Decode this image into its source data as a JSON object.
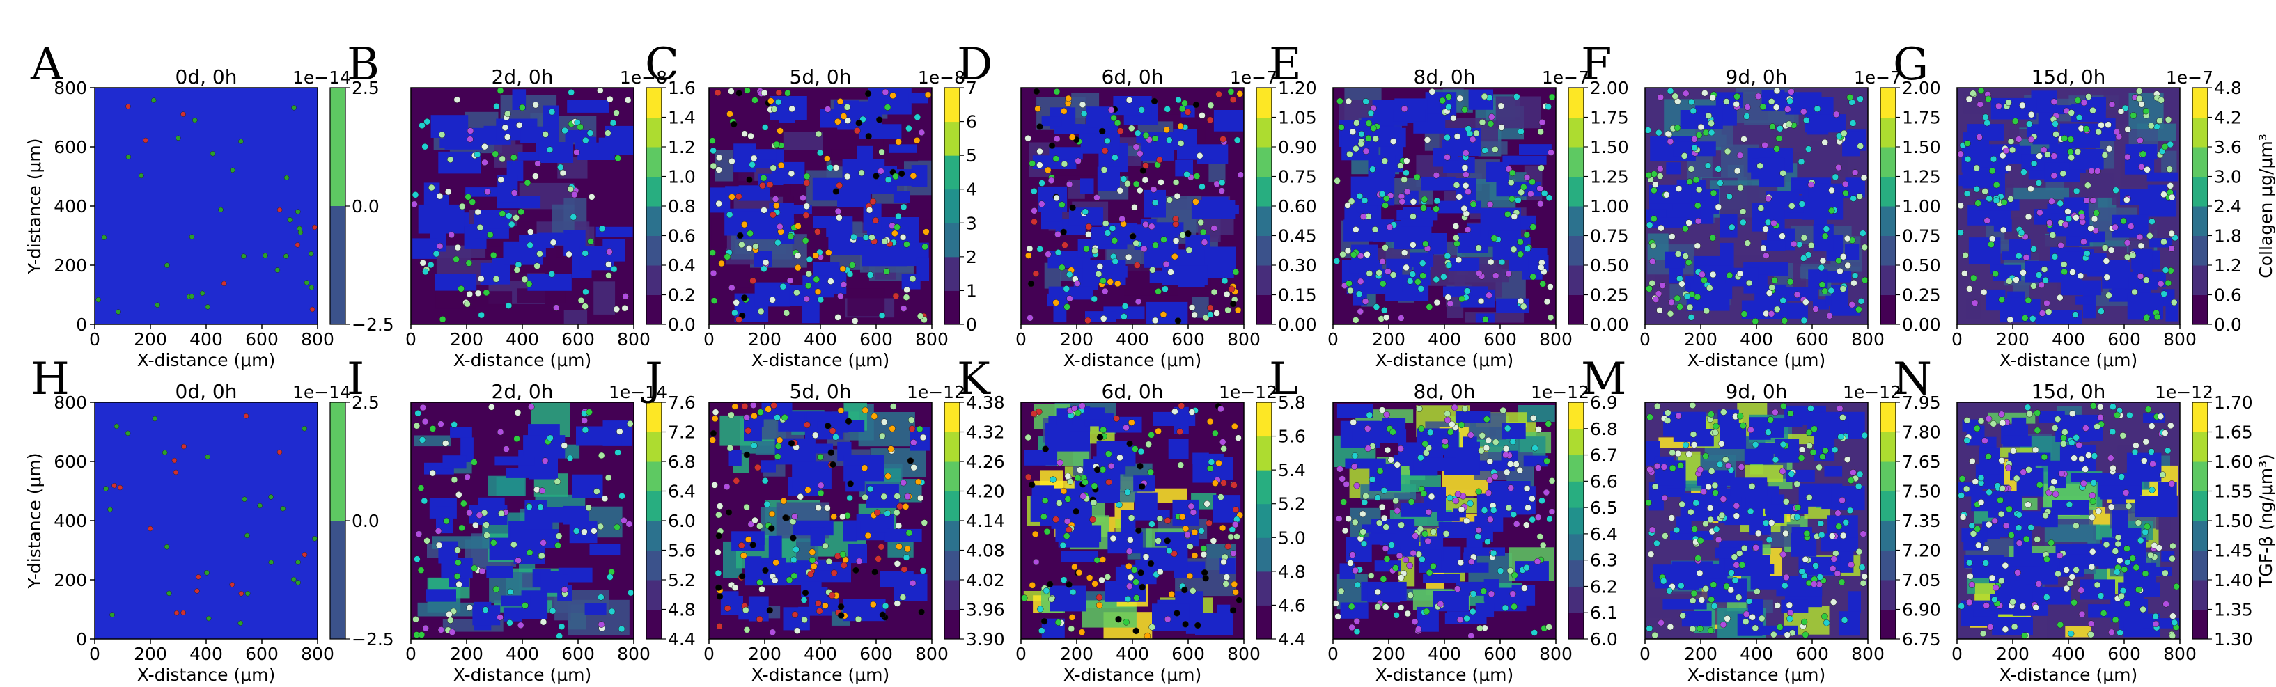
{
  "chart_data": {
    "type": "heatmap",
    "description": "Agent-based simulation panels of cell positions overlaid on a substance concentration field",
    "x_axis": {
      "label": "X-distance (μm)",
      "ticks": [
        0,
        200,
        400,
        600,
        800
      ],
      "range": [
        0,
        800
      ]
    },
    "y_axis": {
      "label": "Y-distance (μm)",
      "ticks": [
        0,
        200,
        400,
        600,
        800
      ],
      "range": [
        0,
        800
      ]
    },
    "rows": [
      {
        "colorbar_label": "Collagen μg/μm³",
        "panels": [
          {
            "letter": "A",
            "title": "0d, 0h",
            "exponent": "1e−14",
            "cbar_ticks": [
              "−2.5",
              "0.0",
              "2.5"
            ],
            "cbar_range": [
              -2.5,
              2.5
            ],
            "cbar_type": "two"
          },
          {
            "letter": "B",
            "title": "2d, 0h",
            "exponent": "1e−8",
            "cbar_ticks": [
              "0.0",
              "0.2",
              "0.4",
              "0.6",
              "0.8",
              "1.0",
              "1.2",
              "1.4",
              "1.6"
            ],
            "cbar_range": [
              0.0,
              1.6
            ]
          },
          {
            "letter": "C",
            "title": "5d, 0h",
            "exponent": "1e−8",
            "cbar_ticks": [
              "0",
              "1",
              "2",
              "3",
              "4",
              "5",
              "6",
              "7"
            ],
            "cbar_range": [
              0,
              7
            ]
          },
          {
            "letter": "D",
            "title": "6d, 0h",
            "exponent": "1e−7",
            "cbar_ticks": [
              "0.00",
              "0.15",
              "0.30",
              "0.45",
              "0.60",
              "0.75",
              "0.90",
              "1.05",
              "1.20"
            ],
            "cbar_range": [
              0.0,
              1.2
            ]
          },
          {
            "letter": "E",
            "title": "8d, 0h",
            "exponent": "1e−7",
            "cbar_ticks": [
              "0.00",
              "0.25",
              "0.50",
              "0.75",
              "1.00",
              "1.25",
              "1.50",
              "1.75",
              "2.00"
            ],
            "cbar_range": [
              0.0,
              2.0
            ]
          },
          {
            "letter": "F",
            "title": "9d, 0h",
            "exponent": "1e−7",
            "cbar_ticks": [
              "0.00",
              "0.25",
              "0.50",
              "0.75",
              "1.00",
              "1.25",
              "1.50",
              "1.75",
              "2.00"
            ],
            "cbar_range": [
              0.0,
              2.0
            ]
          },
          {
            "letter": "G",
            "title": "15d, 0h",
            "exponent": "1e−7",
            "cbar_ticks": [
              "0.0",
              "0.6",
              "1.2",
              "1.8",
              "2.4",
              "3.0",
              "3.6",
              "4.2",
              "4.8"
            ],
            "cbar_range": [
              0.0,
              4.8
            ]
          }
        ]
      },
      {
        "colorbar_label": "TGF-β (ng/μm³)",
        "panels": [
          {
            "letter": "H",
            "title": "0d, 0h",
            "exponent": "1e−14",
            "cbar_ticks": [
              "−2.5",
              "0.0",
              "2.5"
            ],
            "cbar_range": [
              -2.5,
              2.5
            ],
            "cbar_type": "two"
          },
          {
            "letter": "I",
            "title": "2d, 0h",
            "exponent": "1e−14",
            "cbar_ticks": [
              "4.4",
              "4.8",
              "5.2",
              "5.6",
              "6.0",
              "6.4",
              "6.8",
              "7.2",
              "7.6"
            ],
            "cbar_range": [
              4.4,
              7.6
            ]
          },
          {
            "letter": "J",
            "title": "5d, 0h",
            "exponent": "1e−12",
            "cbar_ticks": [
              "3.90",
              "3.96",
              "4.02",
              "4.08",
              "4.14",
              "4.20",
              "4.26",
              "4.32",
              "4.38"
            ],
            "cbar_range": [
              3.9,
              4.38
            ]
          },
          {
            "letter": "K",
            "title": "6d, 0h",
            "exponent": "1e−12",
            "cbar_ticks": [
              "4.4",
              "4.6",
              "4.8",
              "5.0",
              "5.2",
              "5.4",
              "5.6",
              "5.8"
            ],
            "cbar_range": [
              4.4,
              5.8
            ]
          },
          {
            "letter": "L",
            "title": "8d, 0h",
            "exponent": "1e−12",
            "cbar_ticks": [
              "6.0",
              "6.1",
              "6.2",
              "6.3",
              "6.4",
              "6.5",
              "6.6",
              "6.7",
              "6.8",
              "6.9"
            ],
            "cbar_range": [
              6.0,
              6.9
            ]
          },
          {
            "letter": "M",
            "title": "9d, 0h",
            "exponent": "1e−12",
            "cbar_ticks": [
              "6.75",
              "6.90",
              "7.05",
              "7.20",
              "7.35",
              "7.50",
              "7.65",
              "7.80",
              "7.95"
            ],
            "cbar_range": [
              6.75,
              7.95
            ]
          },
          {
            "letter": "N",
            "title": "15d, 0h",
            "exponent": "1e−12",
            "cbar_ticks": [
              "1.30",
              "1.35",
              "1.40",
              "1.45",
              "1.50",
              "1.55",
              "1.60",
              "1.65",
              "1.70"
            ],
            "cbar_range": [
              1.3,
              1.7
            ]
          }
        ]
      }
    ],
    "colormap": [
      "#440154",
      "#472d7b",
      "#3b528b",
      "#2c728e",
      "#21918c",
      "#28ae80",
      "#5ec962",
      "#addc30",
      "#fde725"
    ],
    "two_band_colors": [
      "#3b528b",
      "#5ec962"
    ]
  }
}
